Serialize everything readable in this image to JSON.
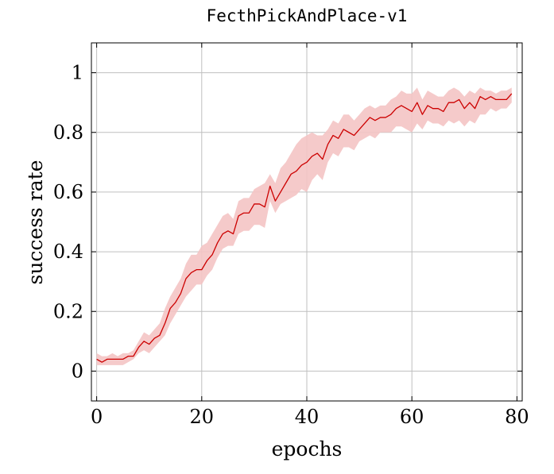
{
  "chart_data": {
    "type": "line",
    "title": "FecthPickAndPlace-v1",
    "xlabel": "epochs",
    "ylabel": "success rate",
    "xlim": [
      -1,
      81
    ],
    "ylim": [
      -0.1,
      1.1
    ],
    "xticks": [
      0,
      20,
      40,
      60,
      80
    ],
    "yticks": [
      0,
      0.2,
      0.4,
      0.6,
      0.8,
      1
    ],
    "ytick_labels": [
      "0",
      "0.2",
      "0.4",
      "0.6",
      "0.8",
      "1"
    ],
    "grid": true,
    "colors": {
      "line": "#cc0000",
      "band": "#f4c4c4"
    },
    "series": [
      {
        "x": [
          0,
          1,
          2,
          3,
          4,
          5,
          6,
          7,
          8,
          9,
          10,
          11,
          12,
          13,
          14,
          15,
          16,
          17,
          18,
          19,
          20,
          21,
          22,
          23,
          24,
          25,
          26,
          27,
          28,
          29,
          30,
          31,
          32,
          33,
          34,
          35,
          36,
          37,
          38,
          39,
          40,
          41,
          42,
          43,
          44,
          45,
          46,
          47,
          48,
          49,
          50,
          51,
          52,
          53,
          54,
          55,
          56,
          57,
          58,
          59,
          60,
          61,
          62,
          63,
          64,
          65,
          66,
          67,
          68,
          69,
          70,
          71,
          72,
          73,
          74,
          75,
          76,
          77,
          78,
          79
        ],
        "y": [
          0.04,
          0.03,
          0.04,
          0.04,
          0.04,
          0.04,
          0.05,
          0.05,
          0.08,
          0.1,
          0.09,
          0.11,
          0.12,
          0.16,
          0.21,
          0.23,
          0.26,
          0.31,
          0.33,
          0.34,
          0.34,
          0.37,
          0.39,
          0.43,
          0.46,
          0.47,
          0.46,
          0.52,
          0.53,
          0.53,
          0.56,
          0.56,
          0.55,
          0.62,
          0.57,
          0.6,
          0.63,
          0.66,
          0.67,
          0.69,
          0.7,
          0.72,
          0.73,
          0.71,
          0.76,
          0.79,
          0.78,
          0.81,
          0.8,
          0.79,
          0.81,
          0.83,
          0.85,
          0.84,
          0.85,
          0.85,
          0.86,
          0.88,
          0.89,
          0.88,
          0.87,
          0.9,
          0.86,
          0.89,
          0.88,
          0.88,
          0.87,
          0.9,
          0.9,
          0.91,
          0.88,
          0.9,
          0.88,
          0.92,
          0.91,
          0.92,
          0.91,
          0.91,
          0.91,
          0.93
        ],
        "lower": [
          0.02,
          0.02,
          0.02,
          0.02,
          0.02,
          0.02,
          0.03,
          0.04,
          0.06,
          0.07,
          0.06,
          0.08,
          0.1,
          0.12,
          0.16,
          0.19,
          0.22,
          0.25,
          0.27,
          0.29,
          0.29,
          0.32,
          0.34,
          0.38,
          0.41,
          0.42,
          0.42,
          0.46,
          0.47,
          0.47,
          0.49,
          0.49,
          0.48,
          0.57,
          0.53,
          0.56,
          0.57,
          0.58,
          0.59,
          0.61,
          0.6,
          0.64,
          0.66,
          0.64,
          0.7,
          0.73,
          0.72,
          0.75,
          0.75,
          0.74,
          0.77,
          0.78,
          0.79,
          0.78,
          0.8,
          0.8,
          0.8,
          0.82,
          0.82,
          0.81,
          0.8,
          0.83,
          0.81,
          0.84,
          0.83,
          0.83,
          0.82,
          0.84,
          0.83,
          0.84,
          0.82,
          0.84,
          0.83,
          0.86,
          0.86,
          0.88,
          0.87,
          0.88,
          0.88,
          0.9
        ],
        "upper": [
          0.06,
          0.05,
          0.05,
          0.06,
          0.05,
          0.06,
          0.06,
          0.07,
          0.1,
          0.13,
          0.12,
          0.14,
          0.16,
          0.21,
          0.25,
          0.28,
          0.31,
          0.36,
          0.39,
          0.39,
          0.42,
          0.43,
          0.46,
          0.49,
          0.52,
          0.53,
          0.51,
          0.57,
          0.58,
          0.58,
          0.61,
          0.62,
          0.63,
          0.66,
          0.63,
          0.68,
          0.7,
          0.73,
          0.76,
          0.78,
          0.79,
          0.8,
          0.79,
          0.79,
          0.81,
          0.84,
          0.83,
          0.86,
          0.86,
          0.84,
          0.86,
          0.88,
          0.89,
          0.88,
          0.89,
          0.89,
          0.91,
          0.92,
          0.94,
          0.93,
          0.93,
          0.95,
          0.91,
          0.94,
          0.93,
          0.92,
          0.92,
          0.94,
          0.95,
          0.94,
          0.92,
          0.94,
          0.93,
          0.95,
          0.94,
          0.94,
          0.93,
          0.94,
          0.94,
          0.95
        ]
      }
    ]
  }
}
